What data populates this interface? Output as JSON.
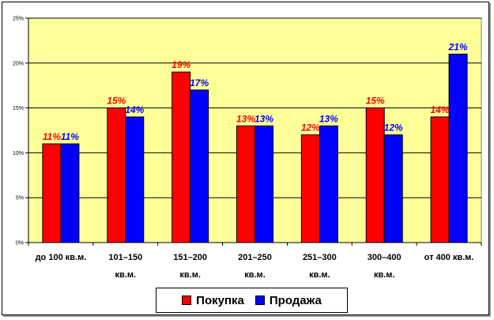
{
  "chart_data": {
    "type": "bar",
    "categories": [
      [
        "до 100 кв.м."
      ],
      [
        "101–150",
        "кв.м."
      ],
      [
        "151–200",
        "кв.м."
      ],
      [
        "201–250",
        "кв.м."
      ],
      [
        "251–300",
        "кв.м."
      ],
      [
        "300–400",
        "кв.м."
      ],
      [
        "от 400 кв.м."
      ]
    ],
    "series": [
      {
        "name": "Покупка",
        "color": "#ff0000",
        "label_color": "#ff0000",
        "values": [
          11,
          15,
          19,
          13,
          12,
          15,
          14
        ],
        "labels": [
          "11%",
          "15%",
          "19%",
          "13%",
          "12%",
          "15%",
          "14%"
        ]
      },
      {
        "name": "Продажа",
        "color": "#0000ff",
        "label_color": "#0000ff",
        "values": [
          11,
          14,
          17,
          13,
          13,
          12,
          21
        ],
        "labels": [
          "11%",
          "14%",
          "17%",
          "13%",
          "13%",
          "12%",
          "21%"
        ]
      }
    ],
    "ylim": [
      0,
      25
    ],
    "yticks": [
      0,
      5,
      10,
      15,
      20,
      25
    ],
    "ytick_labels": [
      "0%",
      "5%",
      "10%",
      "15%",
      "20%",
      "25%"
    ],
    "grid": true,
    "plot_background": "#ffff99",
    "legend_position": "bottom"
  }
}
